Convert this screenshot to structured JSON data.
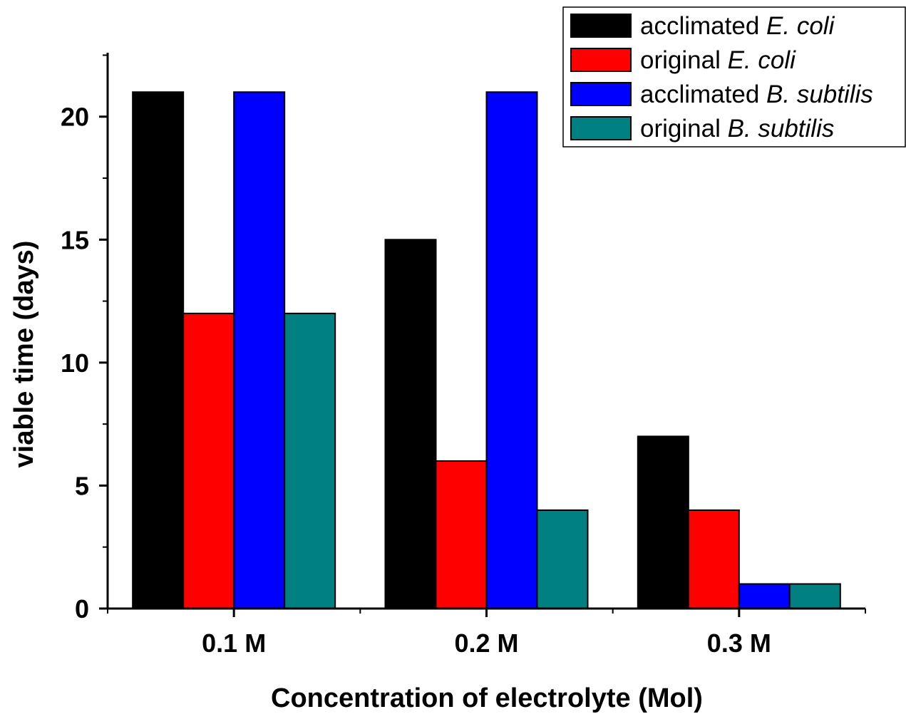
{
  "chart_data": {
    "type": "bar",
    "categories": [
      "0.1 M",
      "0.2 M",
      "0.3 M"
    ],
    "series": [
      {
        "name": "acclimated E. coli",
        "legend": {
          "plain": "acclimated ",
          "italic": "E. coli"
        },
        "color": "#000000",
        "values": [
          21,
          15,
          7
        ]
      },
      {
        "name": "original E. coli",
        "legend": {
          "plain": "original ",
          "italic": "E. coli"
        },
        "color": "#ff0000",
        "values": [
          12,
          6,
          4
        ]
      },
      {
        "name": "acclimated B. subtilis",
        "legend": {
          "plain": "acclimated ",
          "italic": "B. subtilis"
        },
        "color": "#0000ff",
        "values": [
          21,
          21,
          1
        ]
      },
      {
        "name": "original B. subtilis",
        "legend": {
          "plain": "original ",
          "italic": "B. subtilis"
        },
        "color": "#008080",
        "values": [
          12,
          4,
          1
        ]
      }
    ],
    "xlabel": "Concentration of electrolyte (Mol)",
    "ylabel": "viable time (days)",
    "ylim": [
      0,
      22.6
    ],
    "yticks": [
      0,
      5,
      10,
      15,
      20
    ],
    "yticks_minor": [
      2.5,
      7.5,
      12.5,
      17.5,
      22.5
    ],
    "grid": false,
    "legend_position": "top-right"
  }
}
